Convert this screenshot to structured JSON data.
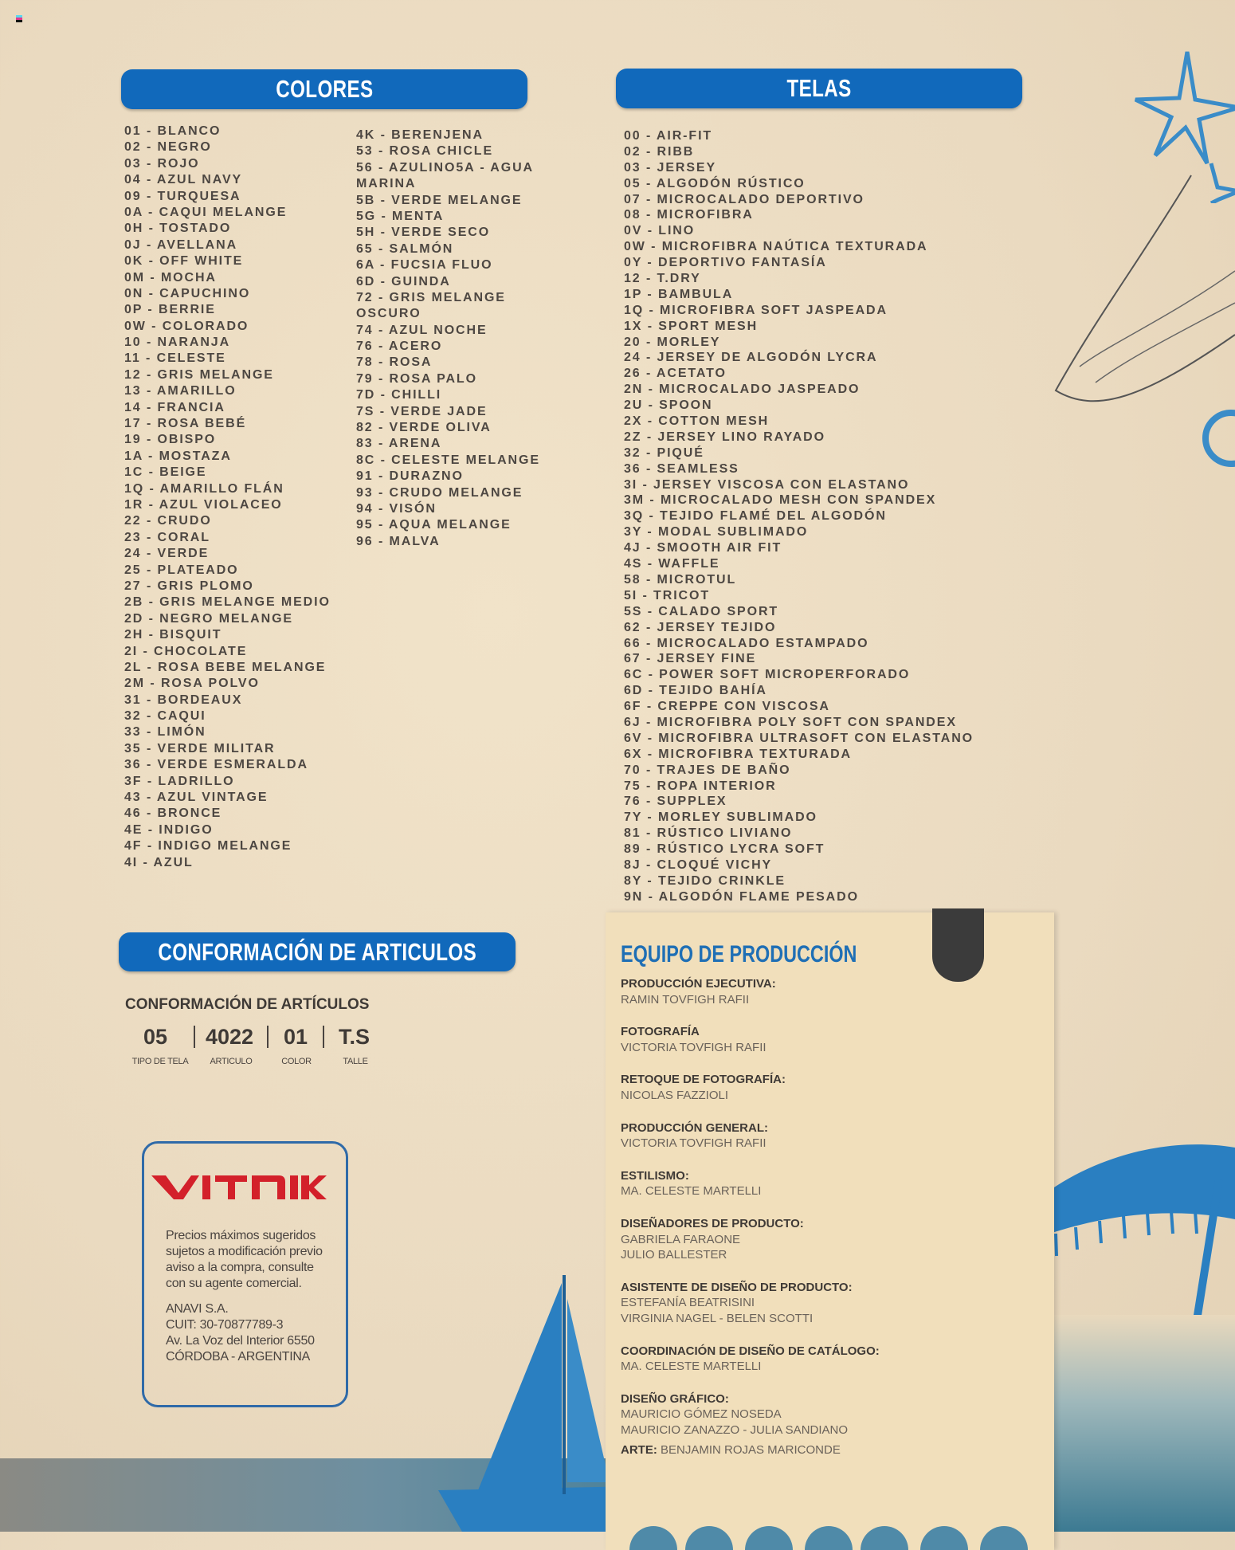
{
  "colores": {
    "title": "COLORES",
    "col1": [
      "01 - BLANCO",
      "02 - NEGRO",
      "03 - ROJO",
      "04 - AZUL NAVY",
      "09 - TURQUESA",
      "0A - CAQUI MELANGE",
      "0H - TOSTADO",
      "0J - AVELLANA",
      "0K - OFF WHITE",
      "0M - MOCHA",
      "0N - CAPUCHINO",
      "0P - BERRIE",
      "0W - COLORADO",
      "10 - NARANJA",
      "11 - CELESTE",
      "12 - GRIS MELANGE",
      "13 - AMARILLO",
      "14 - FRANCIA",
      "17 - ROSA BEBÉ",
      "19 - OBISPO",
      "1A - MOSTAZA",
      "1C - BEIGE",
      "1Q - AMARILLO FLÁN",
      "1R - AZUL VIOLACEO",
      "22 - CRUDO",
      "23 - CORAL",
      "24 - VERDE",
      "25 - PLATEADO",
      "27 - GRIS PLOMO",
      "2B - GRIS MELANGE MEDIO",
      "2D - NEGRO MELANGE",
      "2H - BISQUIT",
      "2I - CHOCOLATE",
      "2L - ROSA BEBE MELANGE",
      "2M - ROSA POLVO",
      "31 - BORDEAUX",
      "32 - CAQUI",
      "33 - LIMÓN",
      "35 - VERDE MILITAR",
      "36 - VERDE ESMERALDA",
      "3F - LADRILLO",
      "43 - AZUL VINTAGE",
      "46 - BRONCE",
      "4E - INDIGO",
      "4F - INDIGO MELANGE",
      "4I - AZUL"
    ],
    "col2": [
      "4K - BERENJENA",
      "53 - ROSA CHICLE",
      "56 - AZULINO5A - AGUA",
      "MARINA",
      "5B - VERDE MELANGE",
      "5G - MENTA",
      "5H - VERDE SECO",
      "65 - SALMÓN",
      "6A - FUCSIA FLUO",
      "6D - GUINDA",
      "72 - GRIS MELANGE",
      "OSCURO",
      "74 - AZUL NOCHE",
      "76 - ACERO",
      "78 - ROSA",
      "79 - ROSA PALO",
      "7D - CHILLI",
      "7S - VERDE JADE",
      "82 - VERDE OLIVA",
      "83 - ARENA",
      "8C - CELESTE MELANGE",
      "91 - DURAZNO",
      "93 - CRUDO MELANGE",
      "94 - VISÓN",
      "95 - AQUA MELANGE",
      "96 - MALVA"
    ]
  },
  "telas": {
    "title": "TELAS",
    "items": [
      "00 - AIR-FIT",
      "02 - RIBB",
      "03 - JERSEY",
      "05 - ALGODÓN RÚSTICO",
      "07 - MICROCALADO DEPORTIVO",
      "08 - MICROFIBRA",
      "0V - LINO",
      "0W - MICROFIBRA NAÚTICA TEXTURADA",
      "0Y - DEPORTIVO FANTASÍA",
      "12 - T.DRY",
      "1P - BAMBULA",
      "1Q - MICROFIBRA SOFT JASPEADA",
      "1X - SPORT MESH",
      "20 - MORLEY",
      "24 - JERSEY DE ALGODÓN LYCRA",
      "26 - ACETATO",
      "2N - MICROCALADO JASPEADO",
      "2U - SPOON",
      "2X - COTTON MESH",
      "2Z - JERSEY LINO RAYADO",
      "32 - PIQUÉ",
      "36 - SEAMLESS",
      "3I - JERSEY VISCOSA CON ELASTANO",
      "3M - MICROCALADO MESH CON SPANDEX",
      "3Q - TEJIDO FLAMÉ DEL ALGODÓN",
      "3Y - MODAL SUBLIMADO",
      "4J - SMOOTH AIR FIT",
      "4S - WAFFLE",
      "58 - MICROTUL",
      "5I - TRICOT",
      "5S - CALADO SPORT",
      "62 - JERSEY TEJIDO",
      "66 - MICROCALADO ESTAMPADO",
      "67 - JERSEY FINE",
      "6C - POWER SOFT MICROPERFORADO",
      "6D - TEJIDO BAHÍA",
      "6F - CREPPE CON VISCOSA",
      "6J - MICROFIBRA POLY SOFT CON SPANDEX",
      "6V - MICROFIBRA ULTRASOFT CON ELASTANO",
      "6X - MICROFIBRA TEXTURADA",
      "70 - TRAJES DE BAÑO",
      "75 - ROPA INTERIOR",
      "76 - SUPPLEX",
      "7Y - MORLEY SUBLIMADO",
      "81 - RÚSTICO LIVIANO",
      "89 - RÚSTICO LYCRA SOFT",
      "8J - CLOQUÉ VICHY",
      "8Y - TEJIDO CRINKLE",
      "9N - ALGODÓN FLAME PESADO"
    ]
  },
  "conformacion": {
    "banner": "CONFORMACIÓN DE ARTICULOS",
    "subtitle": "CONFORMACIÓN DE ARTÍCULOS",
    "codes": [
      {
        "value": "05",
        "label": "TIPO DE TELA"
      },
      {
        "value": "4022",
        "label": "ARTICULO"
      },
      {
        "value": "01",
        "label": "COLOR"
      },
      {
        "value": "T.S",
        "label": "TALLE"
      }
    ]
  },
  "vitnik": {
    "logo": "VITNIK",
    "logo_color": "#d3202a",
    "notice": [
      "Precios máximos sugeridos",
      "sujetos a modificación previo",
      "aviso a la compra, consulte",
      "con su agente comercial."
    ],
    "company": [
      "ANAVI S.A.",
      "CUIT: 30-70877789-3",
      "Av.  La Voz del Interior 6550",
      "CÓRDOBA - ARGENTINA"
    ]
  },
  "equipo": {
    "title": "EQUIPO DE PRODUCCIÓN",
    "sections": [
      {
        "label": "PRODUCCIÓN EJECUTIVA:",
        "values": [
          "RAMIN TOVFIGH RAFII"
        ]
      },
      {
        "label": "FOTOGRAFÍA",
        "values": [
          "VICTORIA TOVFIGH RAFII"
        ]
      },
      {
        "label": "RETOQUE DE FOTOGRAFÍA:",
        "values": [
          "NICOLAS FAZZIOLI"
        ]
      },
      {
        "label": "PRODUCCIÓN GENERAL:",
        "values": [
          "VICTORIA TOVFIGH RAFII"
        ]
      },
      {
        "label": "ESTILISMO:",
        "values": [
          "MA. CELESTE MARTELLI"
        ]
      },
      {
        "label": "DISEÑADORES DE PRODUCTO:",
        "values": [
          "GABRIELA FARAONE",
          "JULIO BALLESTER"
        ]
      },
      {
        "label": "ASISTENTE DE DISEÑO DE PRODUCTO:",
        "values": [
          "ESTEFANÍA BEATRISINI",
          "VIRGINIA NAGEL -   BELEN SCOTTI"
        ]
      },
      {
        "label": "COORDINACIÓN DE DISEÑO DE CATÁLOGO:",
        "values": [
          "MA. CELESTE MARTELLI"
        ]
      },
      {
        "label": "DISEÑO GRÁFICO:",
        "values": [
          "MAURICIO GÓMEZ NOSEDA",
          "MAURICIO ZANAZZO  -   JULIA SANDIANO"
        ]
      }
    ],
    "arte_label": "ARTE:",
    "arte_value": "BENJAMIN ROJAS MARICONDE"
  },
  "colors": {
    "banner_blue": "#1169bb",
    "title_blue": "#1f6fb5",
    "paper": "#f1dfbb"
  }
}
